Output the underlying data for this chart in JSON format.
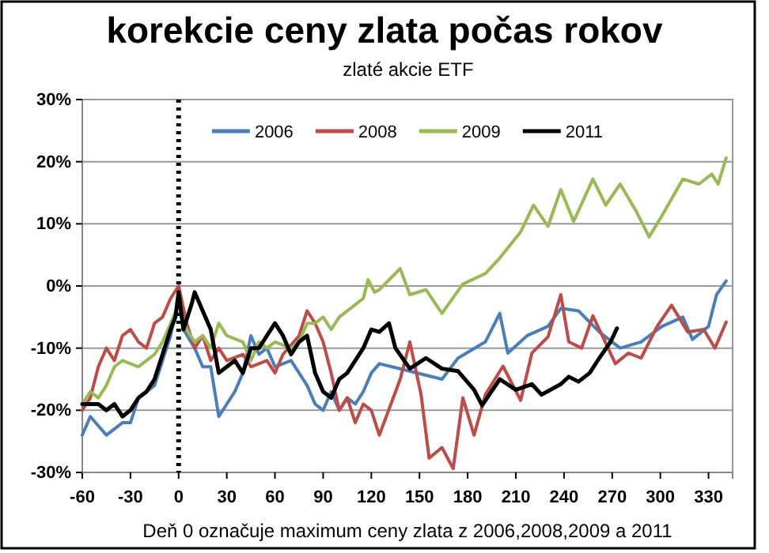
{
  "chart_data": {
    "type": "line",
    "title": "korekcie ceny zlata počas rokov",
    "subtitle": "zlaté akcie ETF",
    "xlabel": "Deň 0 označuje maximum ceny zlata z 2006,2008,2009 a 2011",
    "xlim": [
      -60,
      345
    ],
    "xticks": [
      -60,
      -30,
      0,
      30,
      60,
      90,
      120,
      150,
      180,
      210,
      240,
      270,
      300,
      330
    ],
    "ylim": [
      -30,
      30
    ],
    "yticks": [
      {
        "value": -30,
        "label": "-30%"
      },
      {
        "value": -20,
        "label": "-20%"
      },
      {
        "value": -10,
        "label": "-10%"
      },
      {
        "value": 0,
        "label": "0%"
      },
      {
        "value": 10,
        "label": "10%"
      },
      {
        "value": 20,
        "label": "20%"
      },
      {
        "value": 30,
        "label": "30%"
      }
    ],
    "grid": "y",
    "legend": "top",
    "marker": "none",
    "line_style": "solid",
    "ref_lines": [
      {
        "axis": "x",
        "value": 0,
        "label": null,
        "color": "#000000",
        "line_style": "dotted"
      }
    ],
    "series": [
      {
        "name": "2006",
        "color": "#4a7ebb",
        "x": [
          -60,
          -55,
          -45,
          -35,
          -30,
          -25,
          -15,
          -10,
          -5,
          0,
          3,
          10,
          15,
          20,
          25,
          30,
          35,
          40,
          45,
          50,
          55,
          60,
          70,
          80,
          85,
          90,
          95,
          100,
          105,
          110,
          115,
          120,
          125,
          164,
          174,
          191,
          200,
          205,
          217,
          230,
          238,
          249,
          262,
          275,
          288,
          301,
          314,
          320,
          330,
          335,
          341
        ],
        "values": [
          -24,
          -21,
          -24,
          -22,
          -22,
          -18,
          -16,
          -12,
          -8,
          -2,
          -7,
          -10,
          -13,
          -13,
          -21,
          -19,
          -17,
          -14,
          -8,
          -11,
          -10,
          -13,
          -12,
          -16,
          -19,
          -20,
          -17,
          -20,
          -18,
          -19,
          -17,
          -14,
          -12.5,
          -15,
          -11.6,
          -9,
          -4.4,
          -10.8,
          -8,
          -6.5,
          -3.6,
          -4,
          -7.4,
          -10,
          -9,
          -6.5,
          -5,
          -8.6,
          -6.5,
          -1.4,
          0.8
        ]
      },
      {
        "name": "2008",
        "color": "#be4b48",
        "x": [
          -60,
          -55,
          -50,
          -45,
          -40,
          -35,
          -30,
          -25,
          -20,
          -15,
          -10,
          -5,
          0,
          5,
          10,
          15,
          20,
          25,
          30,
          40,
          45,
          55,
          60,
          65,
          75,
          80,
          85,
          90,
          95,
          100,
          105,
          110,
          115,
          120,
          125,
          138,
          144,
          151,
          156,
          164,
          171,
          177,
          184,
          191,
          202,
          213,
          220,
          230,
          238,
          243,
          251,
          258,
          272,
          280,
          288,
          298,
          307,
          317,
          327,
          334,
          341
        ],
        "values": [
          -20,
          -18,
          -13,
          -10,
          -12,
          -8,
          -7,
          -9,
          -10,
          -6,
          -5,
          -2,
          0,
          -6,
          -10,
          -8,
          -12,
          -10,
          -12,
          -11,
          -13,
          -12,
          -14,
          -11,
          -8,
          -4,
          -6,
          -9,
          -14,
          -20,
          -18,
          -22,
          -19,
          -20,
          -24,
          -15,
          -9,
          -17.5,
          -27.7,
          -26,
          -29.4,
          -18,
          -24,
          -17.5,
          -12.9,
          -18.4,
          -10.8,
          -8.2,
          -1.4,
          -9,
          -10,
          -4.8,
          -12.5,
          -10.8,
          -11.6,
          -6.5,
          -3.1,
          -7.4,
          -7,
          -10,
          -5.8
        ]
      },
      {
        "name": "2009",
        "color": "#98b954",
        "x": [
          -60,
          -55,
          -50,
          -45,
          -40,
          -35,
          -25,
          -20,
          -15,
          -10,
          -5,
          0,
          5,
          10,
          15,
          20,
          25,
          30,
          40,
          45,
          50,
          55,
          60,
          70,
          75,
          80,
          85,
          90,
          95,
          100,
          110,
          115,
          118,
          122,
          125,
          138,
          144,
          154,
          164,
          177,
          191,
          200,
          213,
          221,
          230,
          238,
          246,
          258,
          266,
          275,
          285,
          293,
          301,
          314,
          324,
          332,
          336,
          341
        ],
        "values": [
          -19,
          -17,
          -18,
          -16,
          -13,
          -12,
          -13,
          -12,
          -11,
          -9,
          -6,
          -3,
          -7,
          -9,
          -8,
          -10,
          -6,
          -8,
          -9,
          -12,
          -9,
          -10,
          -9,
          -10,
          -9,
          -6,
          -6,
          -5,
          -7,
          -5,
          -3,
          -2,
          1,
          -1,
          -0.6,
          2.8,
          -1.4,
          -0.6,
          -4.4,
          0.3,
          2,
          4.5,
          8.7,
          13,
          9.6,
          15.5,
          10.4,
          17.2,
          13,
          16.4,
          12,
          7.9,
          11.3,
          17.2,
          16.4,
          18,
          16.4,
          20.6
        ]
      },
      {
        "name": "2011",
        "color": "#000000",
        "x": [
          -60,
          -50,
          -45,
          -40,
          -35,
          -30,
          -25,
          -20,
          -15,
          -10,
          -5,
          -2,
          0,
          3,
          8,
          10,
          15,
          20,
          25,
          30,
          35,
          40,
          45,
          50,
          55,
          60,
          65,
          70,
          75,
          80,
          85,
          90,
          95,
          100,
          105,
          110,
          115,
          120,
          125,
          131,
          135,
          144,
          154,
          164,
          174,
          184,
          189,
          200,
          210,
          220,
          226,
          238,
          243,
          249,
          256,
          262,
          269,
          273
        ],
        "values": [
          -19,
          -19,
          -20,
          -19,
          -21,
          -20,
          -18,
          -17,
          -15,
          -11,
          -7,
          -5,
          -1,
          -7,
          -3,
          -1,
          -4,
          -7,
          -14,
          -13,
          -12,
          -14,
          -10,
          -10,
          -8,
          -6,
          -8,
          -11,
          -9,
          -8,
          -14,
          -17,
          -18,
          -15,
          -14,
          -12,
          -10,
          -7,
          -7.4,
          -6,
          -10,
          -13.3,
          -11.6,
          -13.3,
          -13.7,
          -16.7,
          -19.2,
          -15,
          -16.7,
          -15.8,
          -17.5,
          -15.8,
          -14.6,
          -15.4,
          -14,
          -11.6,
          -9,
          -6.8
        ]
      }
    ]
  }
}
